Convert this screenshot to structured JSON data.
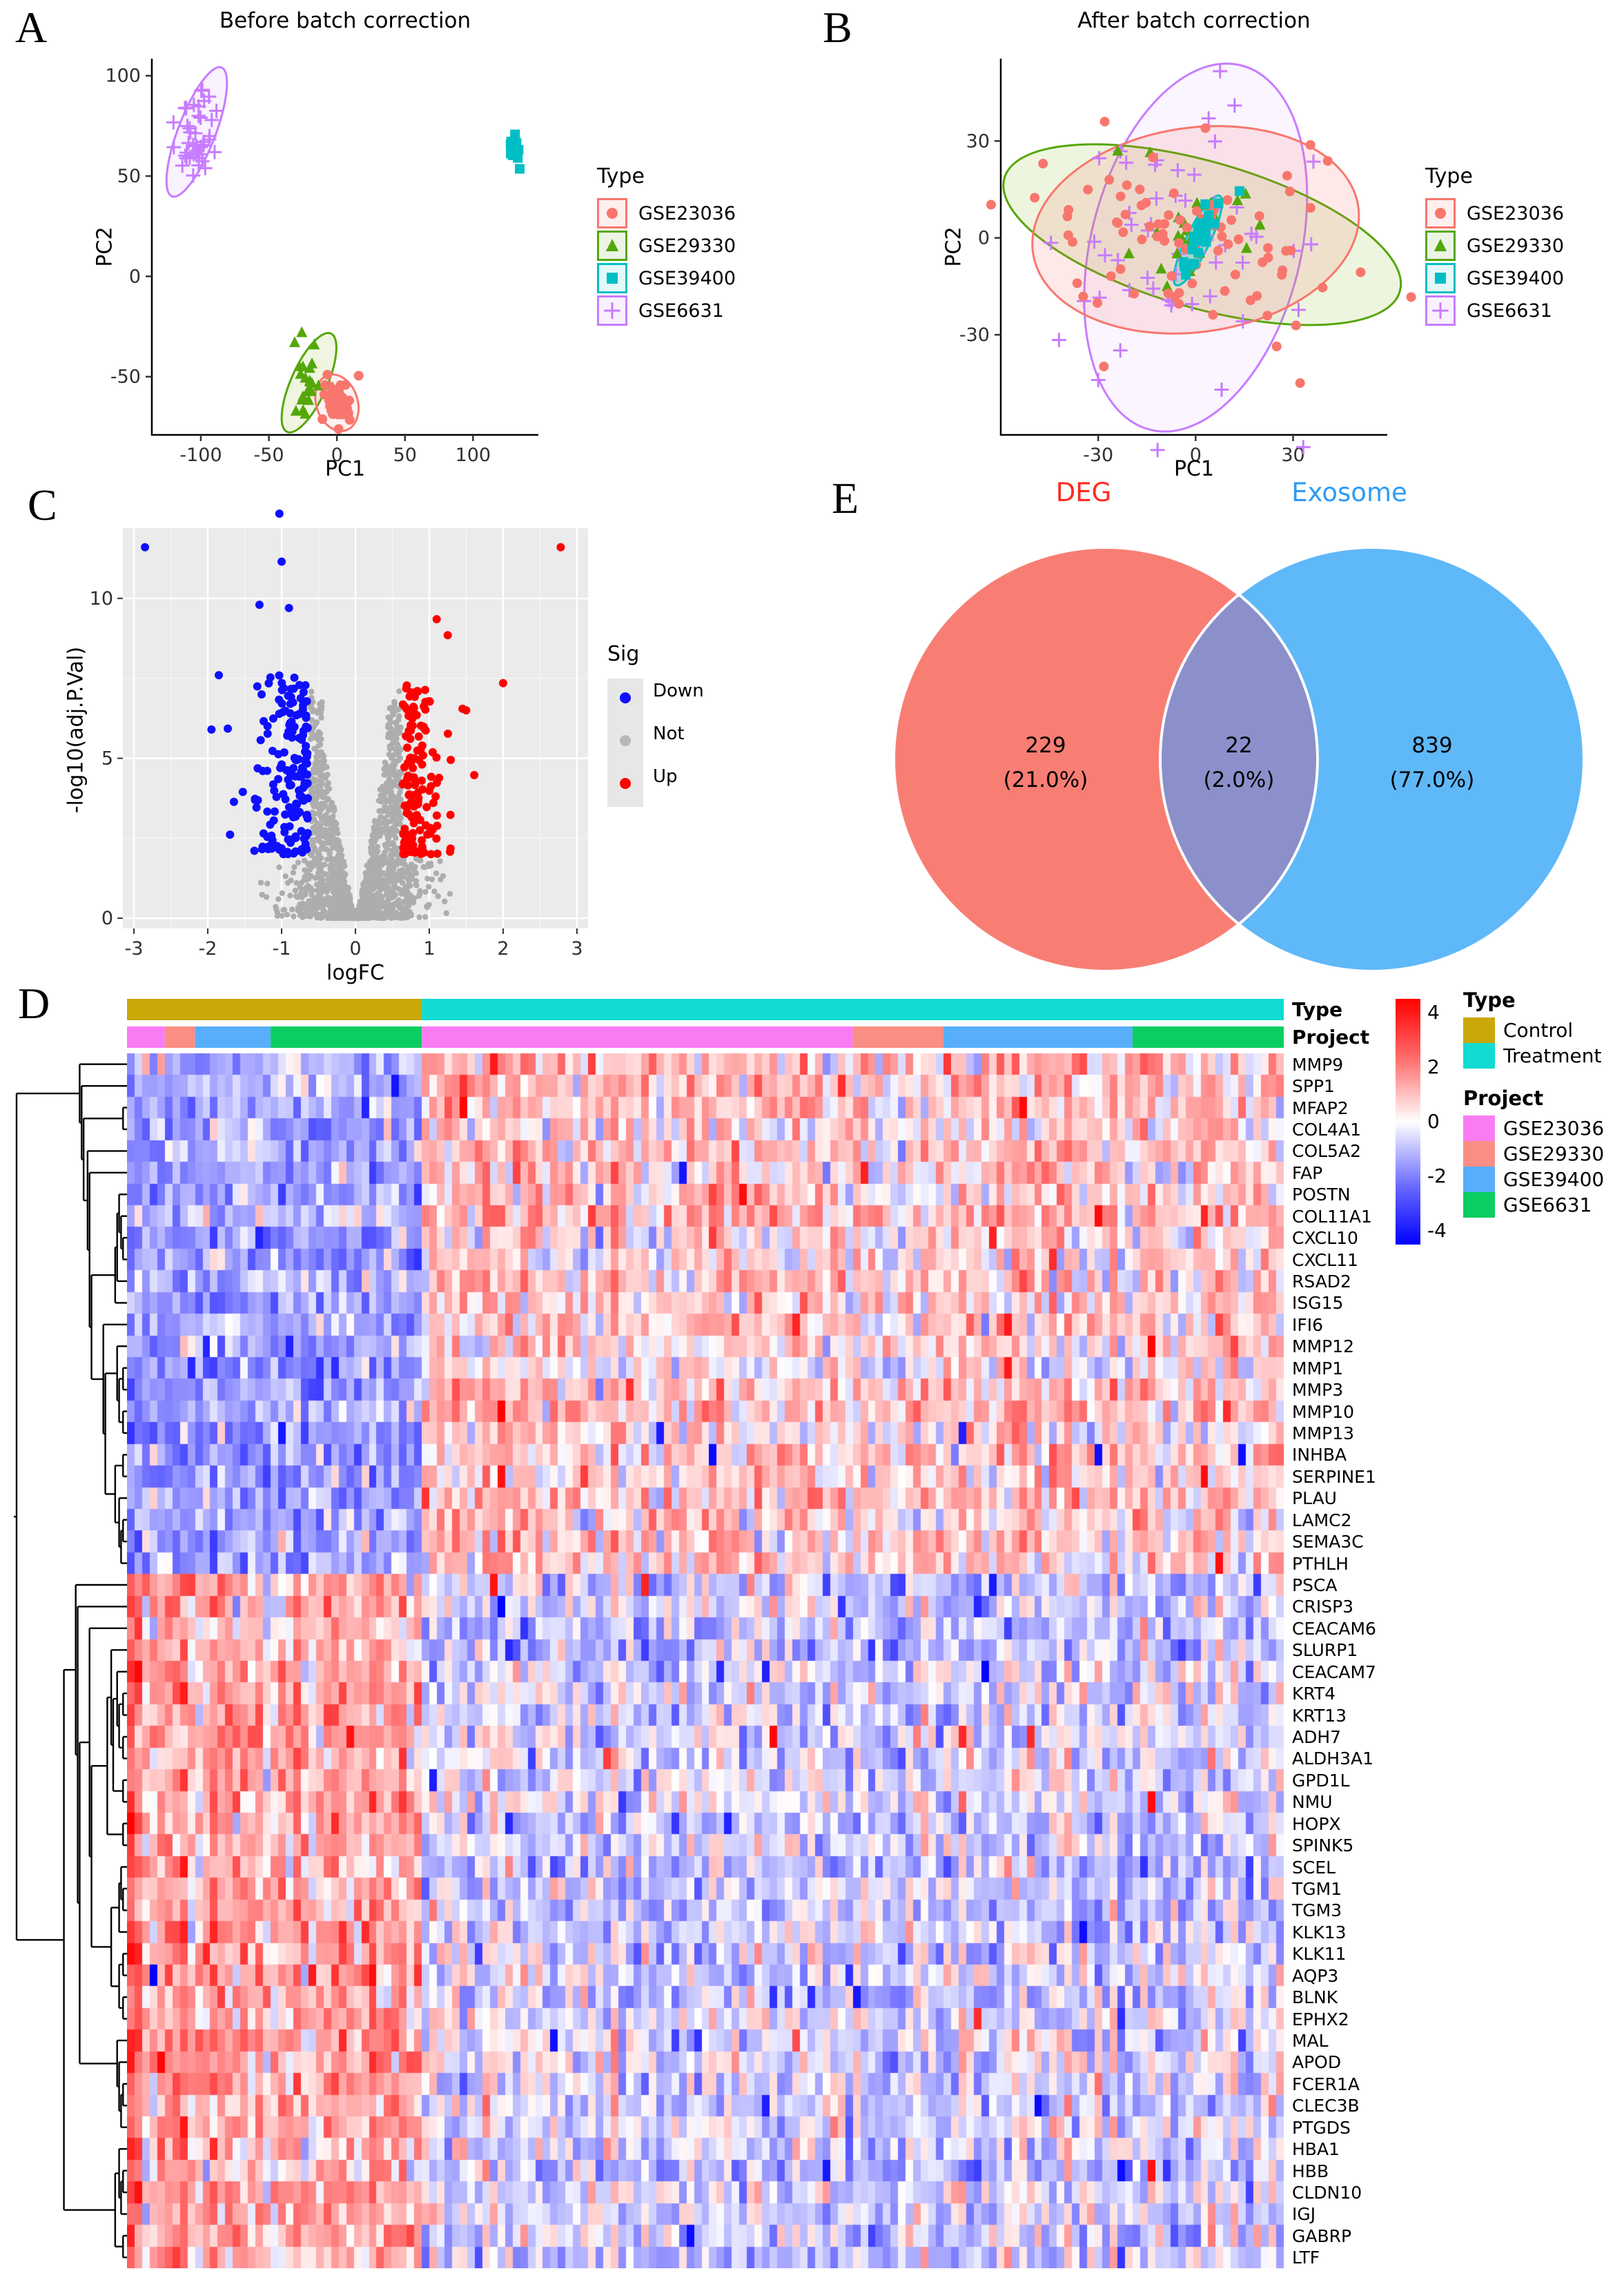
{
  "chart_data": [
    {
      "id": "A",
      "type": "scatter",
      "panel_label": "A",
      "title": "Before batch correction",
      "xlabel": "PC1",
      "ylabel": "PC2",
      "x_ticks": [
        -100,
        -50,
        0,
        50,
        100
      ],
      "y_ticks": [
        -50,
        0,
        50,
        100
      ],
      "x_range": [
        -136,
        148
      ],
      "y_range": [
        -79,
        108.5
      ],
      "grid": false,
      "legend": {
        "title": "Type",
        "position": "right",
        "items": [
          {
            "label": "GSE23036",
            "marker": "circle",
            "color": "#F8766D"
          },
          {
            "label": "GSE29330",
            "marker": "triangle",
            "color": "#54A708"
          },
          {
            "label": "GSE39400",
            "marker": "square",
            "color": "#00BFC4"
          },
          {
            "label": "GSE6631",
            "marker": "plus",
            "color": "#C77CFF"
          }
        ]
      },
      "groups": [
        {
          "name": "GSE6631",
          "marker": "plus",
          "color": "#C77CFF",
          "n": 42,
          "center": [
            -103,
            73
          ],
          "sd": [
            6.5,
            12
          ],
          "extra": [],
          "ellipse": {
            "cx": -103,
            "cy": 72,
            "rxp": 27,
            "ryp": 100,
            "rot": 21,
            "fill": "rgba(199,124,255,0.10)"
          }
        },
        {
          "name": "GSE29330",
          "marker": "triangle",
          "color": "#54A708",
          "n": 22,
          "center": [
            -21,
            -53
          ],
          "sd": [
            5,
            11
          ],
          "extra": [],
          "ellipse": {
            "cx": -20.5,
            "cy": -53,
            "rxp": 26,
            "ryp": 78,
            "rot": 24,
            "fill": "rgba(124,174,0,0.12)"
          }
        },
        {
          "name": "GSE23036",
          "marker": "circle",
          "color": "#F8766D",
          "n": 48,
          "center": [
            0,
            -63
          ],
          "sd": [
            5.5,
            6
          ],
          "extra": [
            [
              16,
              -49.5
            ],
            [
              -7,
              -49
            ]
          ],
          "ellipse": {
            "cx": 0,
            "cy": -63,
            "rxp": 30,
            "ryp": 42,
            "rot": -18,
            "fill": "rgba(248,118,109,0.10)"
          }
        },
        {
          "name": "GSE39400",
          "marker": "square",
          "color": "#00BFC4",
          "n": 16,
          "center": [
            131,
            63
          ],
          "sd": [
            2.2,
            4.5
          ],
          "extra": [],
          "ellipse": null
        }
      ],
      "seed": 11
    },
    {
      "id": "B",
      "type": "scatter",
      "panel_label": "B",
      "title": "After batch correction",
      "xlabel": "PC1",
      "ylabel": "PC2",
      "x_ticks": [
        -30,
        0,
        30
      ],
      "y_ticks": [
        -30,
        0,
        30
      ],
      "x_range": [
        -60,
        59
      ],
      "y_range": [
        -61,
        55.5
      ],
      "grid": false,
      "legend": {
        "title": "Type",
        "position": "right",
        "items": [
          {
            "label": "GSE23036",
            "marker": "circle",
            "color": "#F8766D"
          },
          {
            "label": "GSE29330",
            "marker": "triangle",
            "color": "#54A708"
          },
          {
            "label": "GSE39400",
            "marker": "square",
            "color": "#00BFC4"
          },
          {
            "label": "GSE6631",
            "marker": "plus",
            "color": "#C77CFF"
          }
        ]
      },
      "groups": [
        {
          "name": "GSE6631",
          "marker": "plus",
          "color": "#C77CFF",
          "n": 52,
          "center": [
            -1,
            -3
          ],
          "sd": [
            22,
            20
          ],
          "extra": [
            [
              -30,
              -44
            ],
            [
              8,
              -47
            ],
            [
              12,
              41
            ],
            [
              4,
              37
            ]
          ],
          "ellipse": {
            "cx": 0,
            "cy": -3,
            "rxp": 152,
            "ryp": 272,
            "rot": 14,
            "fill": "rgba(199,124,255,0.08)"
          }
        },
        {
          "name": "GSE29330",
          "marker": "triangle",
          "color": "#54A708",
          "n": 24,
          "center": [
            2,
            -1
          ],
          "sd": [
            20,
            7
          ],
          "extra": [
            [
              -14,
              26.5
            ],
            [
              -24,
              27
            ]
          ],
          "ellipse": {
            "cx": 2,
            "cy": 1,
            "rxp": 298,
            "ryp": 106,
            "rot": 16,
            "fill": "rgba(124,174,0,0.13)"
          }
        },
        {
          "name": "GSE23036",
          "marker": "circle",
          "color": "#F8766D",
          "n": 85,
          "center": [
            0,
            -2
          ],
          "sd": [
            25,
            13
          ],
          "extra": [
            [
              -28,
              36
            ],
            [
              3,
              34
            ],
            [
              -47,
              23
            ]
          ],
          "ellipse": {
            "cx": 0,
            "cy": 2.5,
            "rxp": 238,
            "ryp": 148,
            "rot": -8,
            "fill": "rgba(248,118,109,0.16)"
          }
        },
        {
          "name": "GSE39400",
          "marker": "square",
          "color": "#00BFC4",
          "n": 30,
          "center": [
            0.5,
            -0.5
          ],
          "sd": [
            1.6,
            4.6
          ],
          "corr": 0.35,
          "extra": [
            [
              13.5,
              14.5
            ]
          ],
          "ellipse": {
            "cx": 0.7,
            "cy": -0.8,
            "rxp": 17,
            "ryp": 72,
            "rot": 26,
            "fill": "rgba(0,191,196,0.25)"
          }
        }
      ],
      "seed": 22
    },
    {
      "id": "C",
      "type": "volcano",
      "panel_label": "C",
      "xlabel": "logFC",
      "ylabel": "-log10(adj.P.Val)",
      "x_ticks": [
        -3,
        -2,
        -1,
        0,
        1,
        2,
        3
      ],
      "y_ticks": [
        0,
        5,
        10
      ],
      "x_range": [
        -3.15,
        3.15
      ],
      "y_range": [
        -0.32,
        12.2
      ],
      "panel_bg": "#EBEBEB",
      "grid": true,
      "legend": {
        "title": "Sig",
        "items": [
          {
            "label": "Down",
            "color": "#0F0FFF"
          },
          {
            "label": "Not",
            "color": "#B8B8B8"
          },
          {
            "label": "Up",
            "color": "#FF0000"
          }
        ]
      },
      "counts": {
        "gray": 1700,
        "blue": 170,
        "red": 135
      },
      "thresholds": {
        "logfc": 0.62,
        "p": 1.9
      },
      "outliers": {
        "blue": [
          [
            -2.85,
            11.6
          ],
          [
            -1.03,
            12.65
          ],
          [
            -1.0,
            11.15
          ],
          [
            -1.3,
            9.8
          ],
          [
            -0.9,
            9.7
          ],
          [
            -1.85,
            7.6
          ],
          [
            -1.95,
            5.9
          ]
        ],
        "red": [
          [
            2.78,
            11.6
          ],
          [
            2.0,
            7.35
          ],
          [
            1.1,
            9.35
          ],
          [
            1.25,
            8.85
          ],
          [
            1.45,
            6.55
          ],
          [
            1.5,
            6.5
          ]
        ]
      },
      "seed": 33
    },
    {
      "id": "D",
      "type": "heatmap",
      "panel_label": "D",
      "rows": [
        "MMP9",
        "SPP1",
        "MFAP2",
        "COL4A1",
        "COL5A2",
        "FAP",
        "POSTN",
        "COL11A1",
        "CXCL10",
        "CXCL11",
        "RSAD2",
        "ISG15",
        "IFI6",
        "MMP12",
        "MMP1",
        "MMP3",
        "MMP10",
        "MMP13",
        "INHBA",
        "SERPINE1",
        "PLAU",
        "LAMC2",
        "SEMA3C",
        "PTHLH",
        "PSCA",
        "CRISP3",
        "CEACAM6",
        "SLURP1",
        "CEACAM7",
        "KRT4",
        "KRT13",
        "ADH7",
        "ALDH3A1",
        "GPD1L",
        "NMU",
        "HOPX",
        "SPINK5",
        "SCEL",
        "TGM1",
        "TGM3",
        "KLK13",
        "KLK11",
        "AQP3",
        "BLNK",
        "EPHX2",
        "MAL",
        "APOD",
        "FCER1A",
        "CLEC3B",
        "PTGDS",
        "HBA1",
        "HBB",
        "CLDN10",
        "IGJ",
        "GABRP",
        "LTF"
      ],
      "row_blocks": [
        {
          "from": 0,
          "to": 23,
          "direction": "up"
        },
        {
          "from": 24,
          "to": 55,
          "direction": "down"
        }
      ],
      "col_segments": [
        {
          "type": "Control",
          "project": "GSE23036",
          "n": 5
        },
        {
          "type": "Control",
          "project": "GSE29330",
          "n": 4
        },
        {
          "type": "Control",
          "project": "GSE39400",
          "n": 10
        },
        {
          "type": "Control",
          "project": "GSE6631",
          "n": 20
        },
        {
          "type": "Treatment",
          "project": "GSE23036",
          "n": 57
        },
        {
          "type": "Treatment",
          "project": "GSE29330",
          "n": 12
        },
        {
          "type": "Treatment",
          "project": "GSE39400",
          "n": 25
        },
        {
          "type": "Treatment",
          "project": "GSE6631",
          "n": 20
        }
      ],
      "block_means": {
        "up_control": -1.25,
        "up_treatment": 0.55,
        "down_control": 1.15,
        "down_treatment": -0.5
      },
      "annotation_labels": {
        "type": "Type",
        "project": "Project"
      },
      "type_colors": {
        "Control": "#C9A808",
        "Treatment": "#12DBD2"
      },
      "project_colors": {
        "GSE23036": "#FA7CF3",
        "GSE29330": "#FB8E84",
        "GSE39400": "#58AEFB",
        "GSE6631": "#0BCE61"
      },
      "scale": {
        "ticks": [
          "4",
          "2",
          "0",
          "-2",
          "-4"
        ],
        "tick_values": [
          4,
          2,
          0,
          -2,
          -4
        ],
        "max": 4.5,
        "pos_color": "#FF0000",
        "mid_color": "#FFFFFF",
        "neg_color": "#0000FF"
      },
      "legend": {
        "type_title": "Type",
        "type_items": [
          "Control",
          "Treatment"
        ],
        "project_title": "Project",
        "project_items": [
          "GSE23036",
          "GSE29330",
          "GSE39400",
          "GSE6631"
        ]
      },
      "dendrogram": {
        "leaves": 56,
        "top_split_after_row": 23
      },
      "seed": 44
    },
    {
      "id": "E",
      "type": "venn",
      "panel_label": "E",
      "sets": [
        {
          "name": "DEG",
          "label_color": "#FF2A1F",
          "fill": "#F87E74",
          "only_count": "229",
          "only_pct": "(21.0%)"
        },
        {
          "name": "Exosome",
          "label_color": "#2E9BF5",
          "fill": "#5FB8F8",
          "only_count": "839",
          "only_pct": "(77.0%)"
        }
      ],
      "intersection": {
        "count": "22",
        "pct": "(2.0%)",
        "fill": "#8B90CB"
      }
    }
  ]
}
